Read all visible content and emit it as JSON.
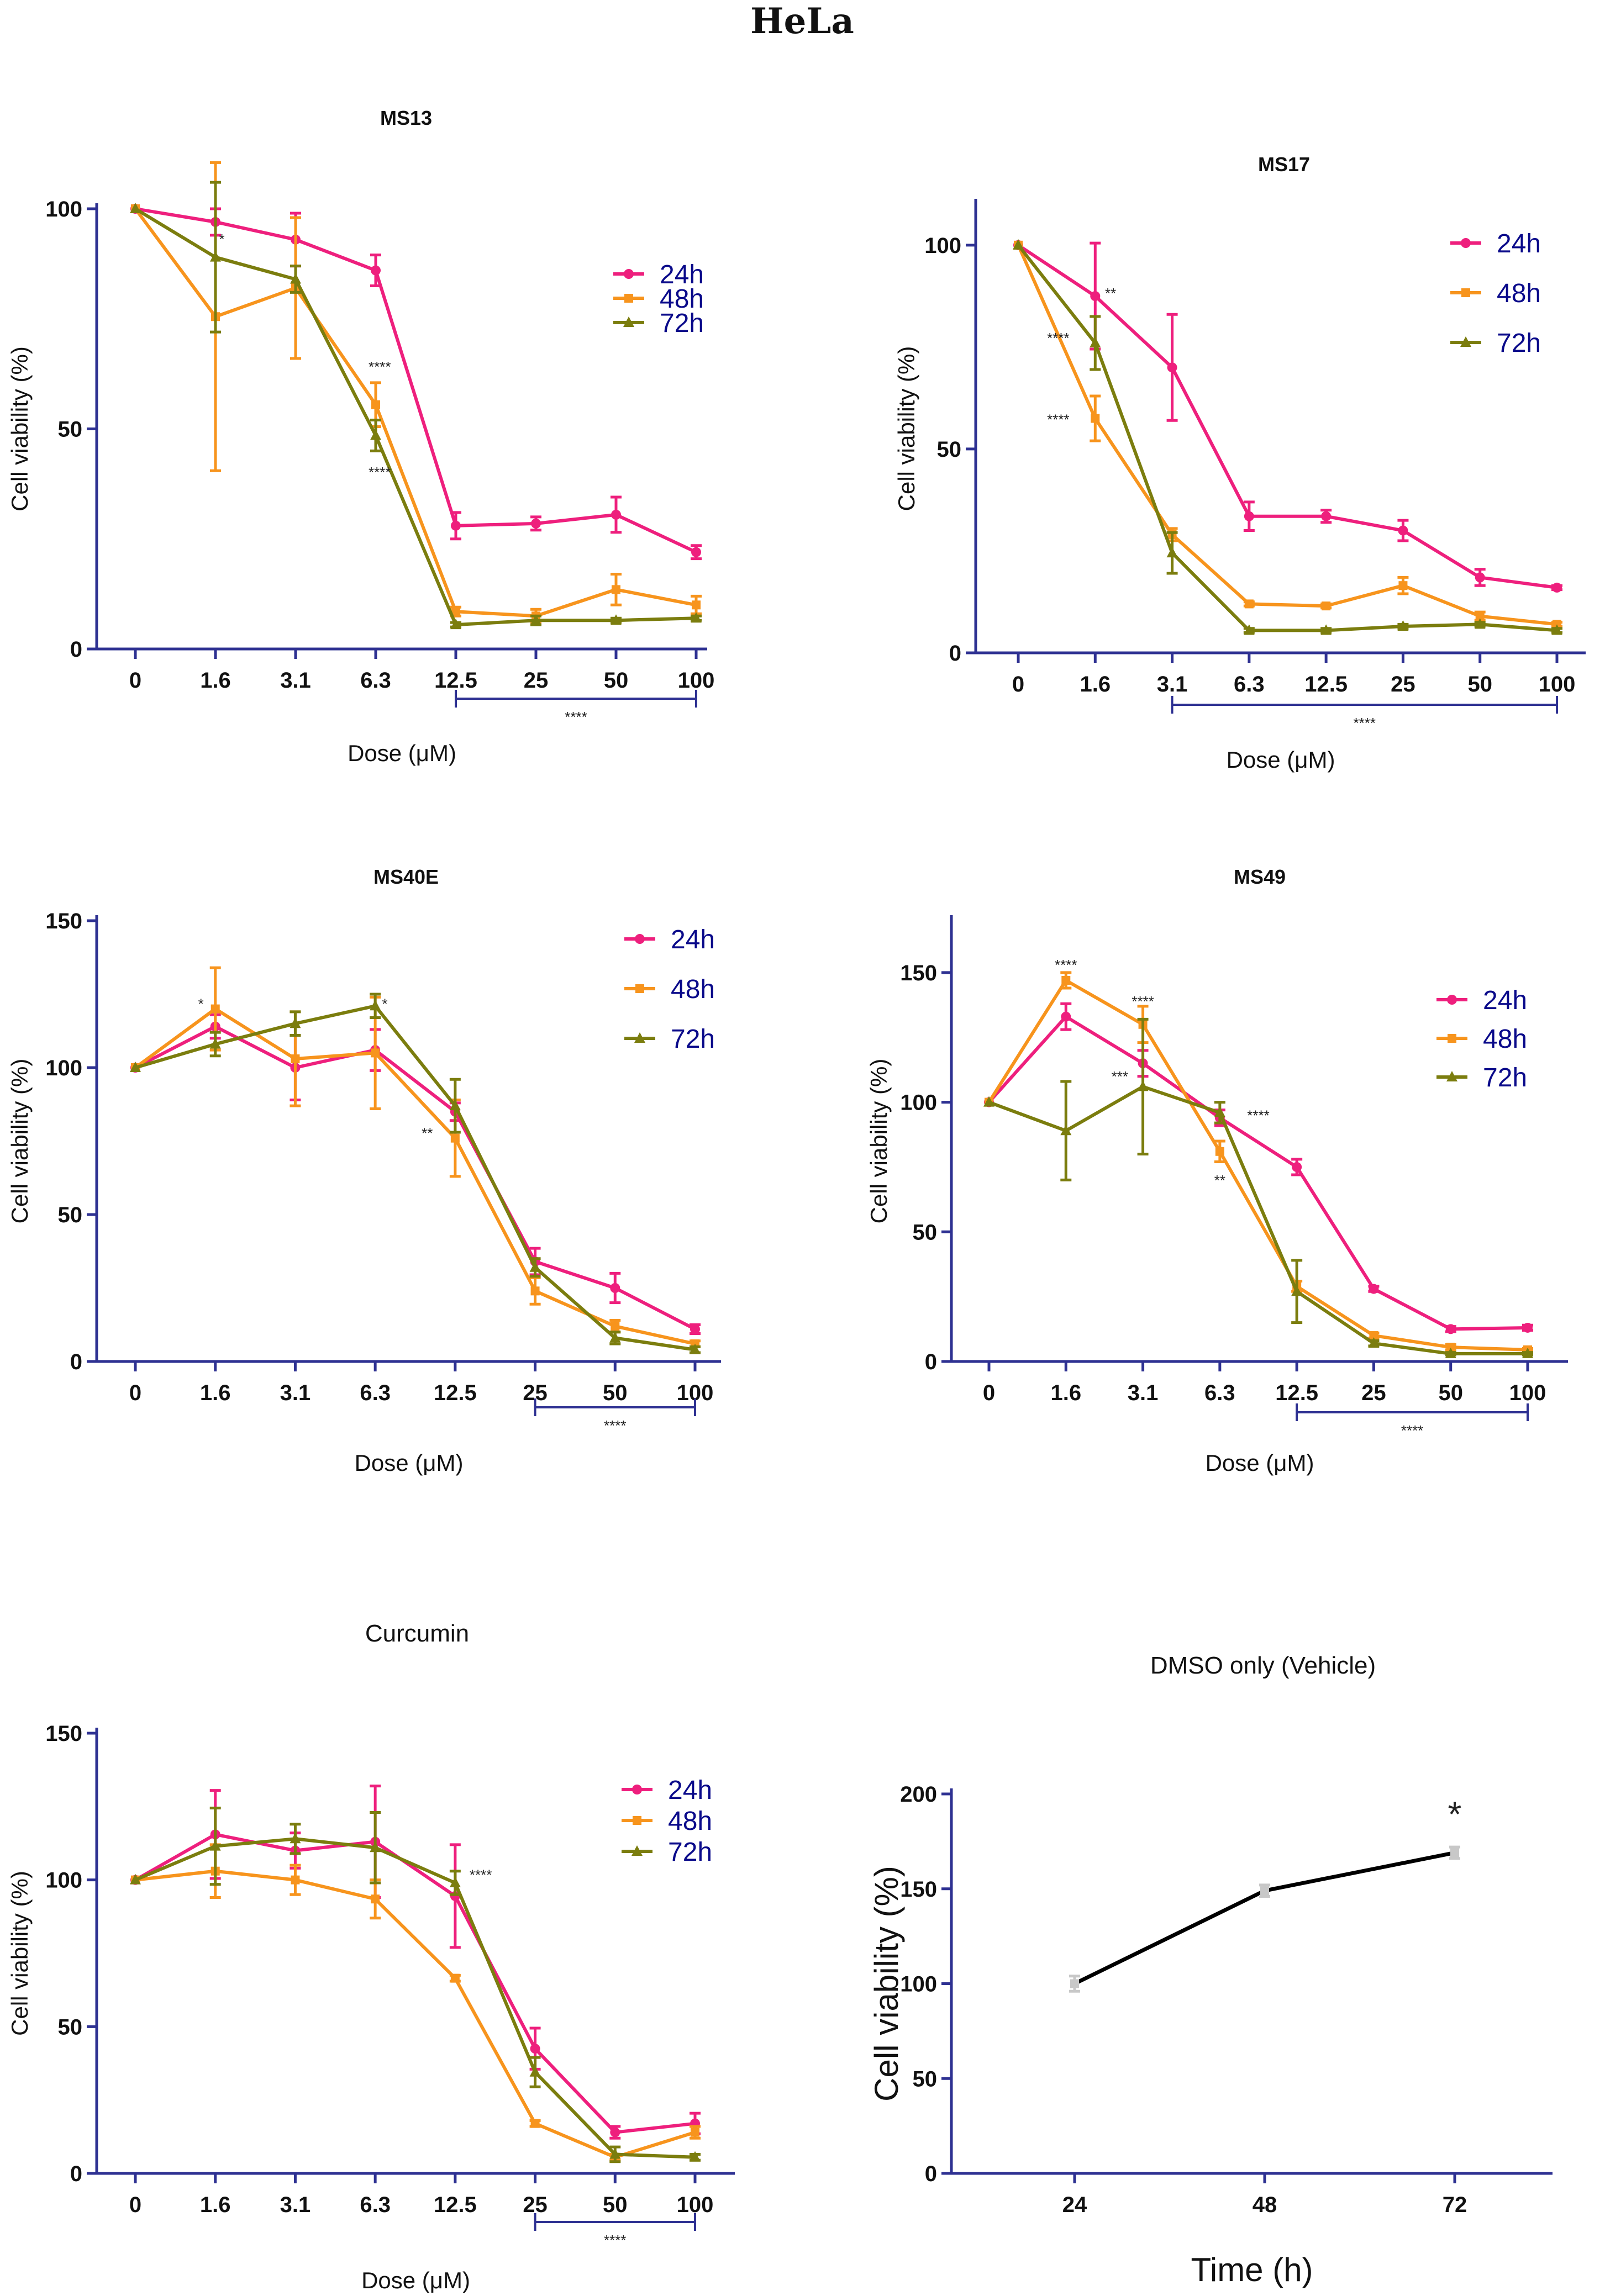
{
  "figure_title": "HeLa",
  "colors": {
    "24h": "#ee1f7d",
    "48h": "#f7941d",
    "72h": "#7b7d0e",
    "axis": "#2e3192",
    "vehicle": "#000000",
    "vehicle_marker": "#c8c8c8"
  },
  "chart_data": [
    {
      "id": "ms13",
      "type": "line",
      "title": "MS13",
      "xlabel": "Dose (μM)",
      "ylabel": "Cell viability (%)",
      "categories": [
        "0",
        "1.6",
        "3.1",
        "6.3",
        "12.5",
        "25",
        "50",
        "100"
      ],
      "ylim": [
        0,
        100
      ],
      "yticks": [
        0,
        50,
        100
      ],
      "series": [
        {
          "name": "24h",
          "values": [
            100,
            97,
            93,
            86,
            28,
            28.5,
            30.5,
            22
          ],
          "errors": [
            0,
            3,
            6,
            3.5,
            3,
            1.5,
            4,
            1.5
          ]
        },
        {
          "name": "48h",
          "values": [
            100,
            75.5,
            82,
            55.5,
            8.5,
            7.5,
            13.5,
            10
          ],
          "errors": [
            0,
            35,
            16,
            5,
            1,
            1.5,
            3.5,
            2
          ]
        },
        {
          "name": "72h",
          "values": [
            100,
            89,
            84,
            48.5,
            5.5,
            6.5,
            6.5,
            7
          ],
          "errors": [
            0,
            17,
            3,
            3.5,
            0.5,
            1,
            0.5,
            0.5
          ]
        }
      ],
      "annotations": [
        {
          "text": "****",
          "x": 3.05,
          "y": 63
        },
        {
          "text": "****",
          "x": 3.05,
          "y": 39
        },
        {
          "text": "*",
          "x": 1.08,
          "y": 92
        }
      ],
      "bracket": {
        "from": 4,
        "to": 7,
        "text": "****"
      }
    },
    {
      "id": "ms17",
      "type": "line",
      "title": "MS17",
      "xlabel": "Dose (μM)",
      "ylabel": "Cell viability (%)",
      "categories": [
        "0",
        "1.6",
        "3.1",
        "6.3",
        "12.5",
        "25",
        "50",
        "100"
      ],
      "ylim": [
        0,
        110
      ],
      "yticks": [
        0,
        50,
        100
      ],
      "series": [
        {
          "name": "24h",
          "values": [
            100,
            87.5,
            70,
            33.5,
            33.5,
            30,
            18.5,
            16
          ],
          "errors": [
            0,
            13,
            13,
            3.5,
            1.5,
            2.5,
            2,
            0.5
          ]
        },
        {
          "name": "48h",
          "values": [
            100,
            57.5,
            29,
            12,
            11.5,
            16.5,
            9,
            7
          ],
          "errors": [
            0,
            5.5,
            1.5,
            0.5,
            0.5,
            2,
            1,
            0.5
          ]
        },
        {
          "name": "72h",
          "values": [
            100,
            76,
            24.5,
            5.5,
            5.5,
            6.5,
            7,
            5.5
          ],
          "errors": [
            0,
            6.5,
            5,
            0.5,
            0.5,
            0.5,
            0.5,
            0.5
          ]
        }
      ],
      "annotations": [
        {
          "text": "**",
          "x": 1.2,
          "y": 87
        },
        {
          "text": "****",
          "x": 0.52,
          "y": 76
        },
        {
          "text": "****",
          "x": 0.52,
          "y": 56
        }
      ],
      "bracket": {
        "from": 2,
        "to": 7,
        "text": "****"
      }
    },
    {
      "id": "ms40e",
      "type": "line",
      "title": "MS40E",
      "xlabel": "Dose (μM)",
      "ylabel": "Cell viability (%)",
      "categories": [
        "0",
        "1.6",
        "3.1",
        "6.3",
        "12.5",
        "25",
        "50",
        "100"
      ],
      "ylim": [
        0,
        150
      ],
      "yticks": [
        0,
        50,
        100,
        150
      ],
      "series": [
        {
          "name": "24h",
          "values": [
            100,
            114,
            100,
            106,
            85,
            34,
            25,
            11
          ],
          "errors": [
            0,
            4,
            11,
            7,
            3,
            4.5,
            5,
            1.5
          ]
        },
        {
          "name": "48h",
          "values": [
            100,
            120,
            103,
            105,
            76,
            24,
            12,
            6
          ],
          "errors": [
            0,
            14,
            16,
            19,
            13,
            4.5,
            2,
            1
          ]
        },
        {
          "name": "72h",
          "values": [
            100,
            108,
            115,
            121,
            87,
            32,
            8,
            4
          ],
          "errors": [
            0,
            4,
            4,
            4,
            9,
            3,
            2,
            1
          ]
        }
      ],
      "annotations": [
        {
          "text": "*",
          "x": 0.82,
          "y": 120
        },
        {
          "text": "*",
          "x": 3.12,
          "y": 120
        },
        {
          "text": "**",
          "x": 3.65,
          "y": 76
        }
      ],
      "bracket": {
        "from": 5,
        "to": 7,
        "text": "****"
      }
    },
    {
      "id": "ms49",
      "type": "line",
      "title": "MS49",
      "xlabel": "Dose (μM)",
      "ylabel": "Cell viability (%)",
      "categories": [
        "0",
        "1.6",
        "3.1",
        "6.3",
        "12.5",
        "25",
        "50",
        "100"
      ],
      "ylim": [
        0,
        170
      ],
      "yticks": [
        0,
        50,
        100,
        150
      ],
      "series": [
        {
          "name": "24h",
          "values": [
            100,
            133,
            115,
            94,
            75,
            28,
            12.5,
            13
          ],
          "errors": [
            0,
            5,
            5,
            3,
            3,
            1,
            1,
            1
          ]
        },
        {
          "name": "48h",
          "values": [
            100,
            147,
            130,
            81,
            29,
            10,
            5.5,
            4.5
          ],
          "errors": [
            0,
            3,
            7,
            4,
            2,
            1,
            1,
            0.5
          ]
        },
        {
          "name": "72h",
          "values": [
            100,
            89,
            106,
            96,
            27,
            7,
            3,
            3
          ],
          "errors": [
            0,
            19,
            26,
            4,
            12,
            1,
            0.5,
            0.5
          ]
        }
      ],
      "annotations": [
        {
          "text": "****",
          "x": 1.0,
          "y": 151
        },
        {
          "text": "****",
          "x": 2.0,
          "y": 137
        },
        {
          "text": "***",
          "x": 1.7,
          "y": 108
        },
        {
          "text": "****",
          "x": 3.5,
          "y": 93
        },
        {
          "text": "**",
          "x": 3.0,
          "y": 68
        }
      ],
      "bracket": {
        "from": 4,
        "to": 7,
        "text": "****"
      }
    },
    {
      "id": "curcumin",
      "type": "line",
      "title": "Curcumin",
      "xlabel": "Dose (μM)",
      "ylabel": "Cell viability (%)",
      "categories": [
        "0",
        "1.6",
        "3.1",
        "6.3",
        "12.5",
        "25",
        "50",
        "100"
      ],
      "ylim": [
        0,
        150
      ],
      "yticks": [
        0,
        50,
        100,
        150
      ],
      "series": [
        {
          "name": "24h",
          "values": [
            100,
            115.5,
            110,
            113,
            94.5,
            42.5,
            14,
            17
          ],
          "errors": [
            0,
            15,
            6,
            19,
            17.5,
            7,
            2,
            3.5
          ]
        },
        {
          "name": "48h",
          "values": [
            100,
            103,
            100,
            93.5,
            66.5,
            17,
            5.5,
            14
          ],
          "errors": [
            0,
            9,
            5,
            6.5,
            1,
            1,
            1,
            2
          ]
        },
        {
          "name": "72h",
          "values": [
            100,
            111.5,
            114,
            111,
            99,
            34.5,
            6.5,
            5.5
          ],
          "errors": [
            0,
            13,
            5,
            12,
            4,
            5,
            2.5,
            1
          ]
        }
      ],
      "annotations": [
        {
          "text": "****",
          "x": 4.32,
          "y": 100
        }
      ],
      "bracket": {
        "from": 5,
        "to": 7,
        "text": "****"
      }
    },
    {
      "id": "dmso",
      "type": "line",
      "title": "DMSO only (Vehicle)",
      "xlabel": "Time (h)",
      "ylabel": "Cell viability (%)",
      "categories": [
        "24",
        "48",
        "72"
      ],
      "ylim": [
        0,
        200
      ],
      "yticks": [
        0,
        50,
        100,
        150,
        200
      ],
      "series": [
        {
          "name": "Vehicle",
          "values": [
            100,
            149,
            169
          ],
          "errors": [
            4,
            3,
            3
          ]
        }
      ],
      "annotations": [
        {
          "text": "*",
          "x": 2.0,
          "y": 183
        }
      ]
    }
  ]
}
